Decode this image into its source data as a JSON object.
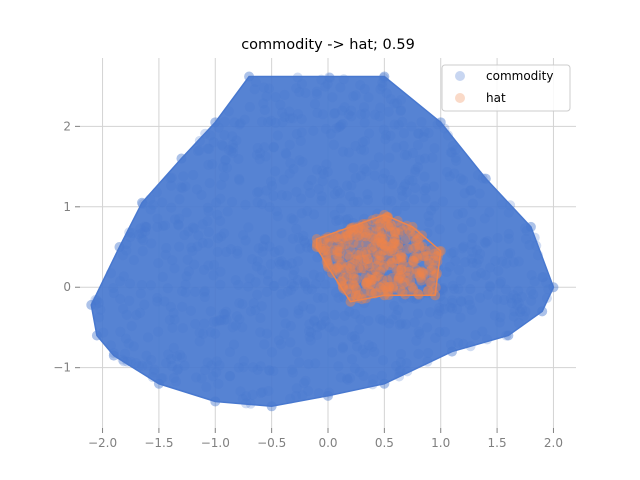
{
  "chart_data": {
    "type": "scatter",
    "title": "commodity -> hat; 0.59",
    "xlabel": "",
    "ylabel": "",
    "xlim": [
      -2.2,
      2.2
    ],
    "ylim": [
      -1.75,
      2.85
    ],
    "x_ticks": [
      -2.0,
      -1.5,
      -1.0,
      -0.5,
      0.0,
      0.5,
      1.0,
      1.5,
      2.0
    ],
    "x_tick_labels": [
      "−2.0",
      "−1.5",
      "−1.0",
      "−0.5",
      "0.0",
      "0.5",
      "1.0",
      "1.5",
      "2.0"
    ],
    "y_ticks": [
      -1,
      0,
      1,
      2
    ],
    "y_tick_labels": [
      "−1",
      "0",
      "1",
      "2"
    ],
    "grid": true,
    "legend_position": "top-right",
    "series": [
      {
        "name": "commodity",
        "color": "#4878cf",
        "hull": [
          [
            -0.7,
            2.62
          ],
          [
            0.5,
            2.62
          ],
          [
            1.0,
            2.05
          ],
          [
            1.4,
            1.35
          ],
          [
            1.8,
            0.75
          ],
          [
            2.0,
            0.0
          ],
          [
            1.9,
            -0.3
          ],
          [
            1.6,
            -0.6
          ],
          [
            1.1,
            -0.8
          ],
          [
            0.5,
            -1.2
          ],
          [
            0.0,
            -1.35
          ],
          [
            -0.5,
            -1.48
          ],
          [
            -1.0,
            -1.42
          ],
          [
            -1.5,
            -1.2
          ],
          [
            -1.9,
            -0.85
          ],
          [
            -2.05,
            -0.6
          ],
          [
            -2.1,
            -0.22
          ],
          [
            -1.85,
            0.5
          ],
          [
            -1.65,
            1.05
          ],
          [
            -1.3,
            1.6
          ],
          [
            -1.0,
            2.05
          ]
        ]
      },
      {
        "name": "hat",
        "color": "#ee854a",
        "hull": [
          [
            -0.1,
            0.6
          ],
          [
            0.5,
            0.9
          ],
          [
            0.75,
            0.75
          ],
          [
            1.0,
            0.45
          ],
          [
            0.95,
            -0.1
          ],
          [
            0.5,
            -0.1
          ],
          [
            0.2,
            -0.18
          ],
          [
            0.0,
            0.25
          ],
          [
            -0.1,
            0.5
          ]
        ]
      }
    ]
  }
}
